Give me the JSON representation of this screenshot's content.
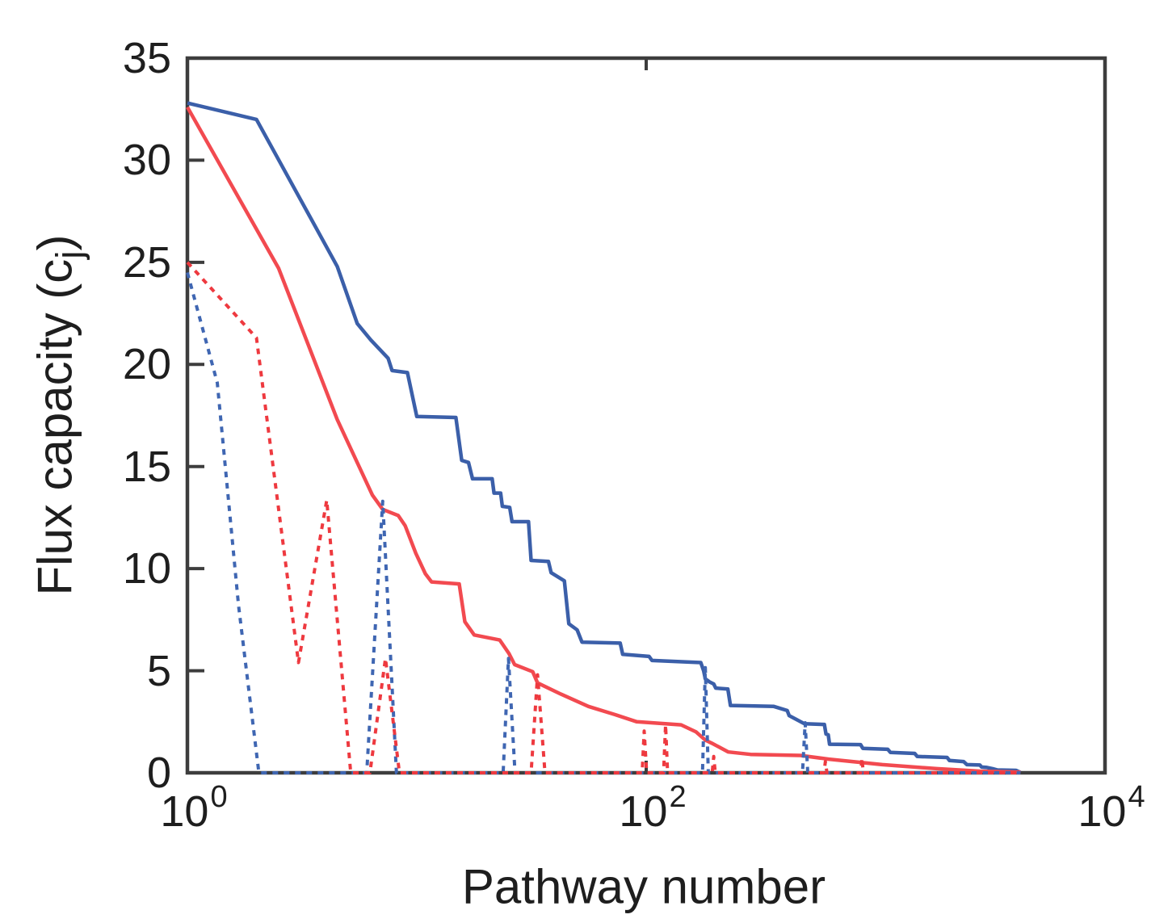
{
  "figure": {
    "background": "#ffffff",
    "frame_color": "#3d3d3d",
    "text_color": "#1e1e1e"
  },
  "chart_data": {
    "type": "line",
    "title": "",
    "xlabel": "Pathway number",
    "ylabel": {
      "main": "Flux capacity (c",
      "sub": "j",
      "end": ")"
    },
    "x_scale": "log10",
    "xlim": [
      1,
      10000
    ],
    "ylim": [
      0,
      35
    ],
    "yticks": [
      0,
      5,
      10,
      15,
      20,
      25,
      30,
      35
    ],
    "xtick_base": "10",
    "xtick_exponents": [
      0,
      2,
      4
    ],
    "grid": false,
    "legend_position": "none",
    "series": [
      {
        "id": "blue-solid-sorted-capacity-curve",
        "color": "#3b5fa9",
        "style": "solid",
        "width": 4.5,
        "points": [
          [
            1,
            32.8
          ],
          [
            2,
            32.0
          ],
          [
            4.5,
            24.8
          ],
          [
            5.5,
            22.0
          ],
          [
            6.3,
            21.2
          ],
          [
            7.5,
            20.3
          ],
          [
            7.8,
            19.7
          ],
          [
            9.1,
            19.6
          ],
          [
            10,
            17.45
          ],
          [
            14.8,
            17.4
          ],
          [
            15.7,
            15.3
          ],
          [
            16.8,
            15.2
          ],
          [
            17.5,
            14.4
          ],
          [
            21.3,
            14.4
          ],
          [
            21.7,
            13.7
          ],
          [
            23.2,
            13.7
          ],
          [
            23.6,
            13.05
          ],
          [
            25.4,
            13.0
          ],
          [
            26,
            12.3
          ],
          [
            30.7,
            12.3
          ],
          [
            31.5,
            10.4
          ],
          [
            37.5,
            10.35
          ],
          [
            38.5,
            9.8
          ],
          [
            44,
            9.4
          ],
          [
            46,
            7.3
          ],
          [
            50,
            7.0
          ],
          [
            52.5,
            6.4
          ],
          [
            77,
            6.35
          ],
          [
            79,
            5.8
          ],
          [
            103,
            5.7
          ],
          [
            106,
            5.5
          ],
          [
            173,
            5.4
          ],
          [
            178,
            5.0
          ],
          [
            181,
            4.6
          ],
          [
            189,
            4.45
          ],
          [
            197,
            4.35
          ],
          [
            201,
            4.15
          ],
          [
            227,
            4.1
          ],
          [
            233,
            3.3
          ],
          [
            360,
            3.25
          ],
          [
            412,
            3.05
          ],
          [
            420,
            2.8
          ],
          [
            490,
            2.4
          ],
          [
            598,
            2.37
          ],
          [
            608,
            1.9
          ],
          [
            622,
            1.86
          ],
          [
            630,
            1.4
          ],
          [
            860,
            1.38
          ],
          [
            880,
            1.2
          ],
          [
            1130,
            1.15
          ],
          [
            1160,
            1.0
          ],
          [
            1480,
            0.95
          ],
          [
            1520,
            0.8
          ],
          [
            2050,
            0.75
          ],
          [
            2100,
            0.6
          ],
          [
            2420,
            0.55
          ],
          [
            2500,
            0.4
          ],
          [
            2850,
            0.38
          ],
          [
            2900,
            0.28
          ],
          [
            3060,
            0.26
          ],
          [
            3240,
            0.2
          ],
          [
            3400,
            0.14
          ],
          [
            4100,
            0.12
          ],
          [
            4280,
            0.02
          ]
        ]
      },
      {
        "id": "red-solid-sorted-capacity-curve",
        "color": "#f24a50",
        "style": "solid",
        "width": 4.5,
        "points": [
          [
            1,
            32.6
          ],
          [
            2.5,
            24.7
          ],
          [
            4.5,
            17.3
          ],
          [
            6.4,
            13.6
          ],
          [
            7.1,
            12.9
          ],
          [
            8.3,
            12.6
          ],
          [
            8.9,
            12.1
          ],
          [
            9.9,
            10.75
          ],
          [
            10.9,
            9.75
          ],
          [
            11.6,
            9.35
          ],
          [
            15.3,
            9.25
          ],
          [
            16.2,
            7.4
          ],
          [
            17.8,
            6.75
          ],
          [
            23,
            6.5
          ],
          [
            25.2,
            5.85
          ],
          [
            26.7,
            5.3
          ],
          [
            32,
            4.95
          ],
          [
            33.6,
            4.4
          ],
          [
            42.5,
            3.85
          ],
          [
            56,
            3.25
          ],
          [
            73,
            2.85
          ],
          [
            91,
            2.5
          ],
          [
            142,
            2.35
          ],
          [
            165,
            2.0
          ],
          [
            181,
            1.6
          ],
          [
            193,
            1.45
          ],
          [
            228,
            1.02
          ],
          [
            285,
            0.9
          ],
          [
            470,
            0.85
          ],
          [
            625,
            0.67
          ],
          [
            1070,
            0.4
          ],
          [
            1850,
            0.2
          ],
          [
            2850,
            0.08
          ],
          [
            4280,
            0.03
          ]
        ]
      },
      {
        "id": "blue-dashed-pathway-order-curve",
        "color": "#3f66b2",
        "style": "dashed",
        "width": 4,
        "points": [
          [
            1,
            24.5
          ],
          [
            1.35,
            19.1
          ],
          [
            1.67,
            8.2
          ],
          [
            2.05,
            0
          ],
          [
            6.05,
            0
          ],
          [
            7.1,
            13.3
          ],
          [
            8.15,
            0
          ],
          [
            23.8,
            0
          ],
          [
            25.1,
            5.6
          ],
          [
            26.8,
            0
          ],
          [
            176,
            0
          ],
          [
            181,
            5.15
          ],
          [
            186.5,
            0
          ],
          [
            480,
            0
          ],
          [
            493,
            2.45
          ],
          [
            506,
            0
          ],
          [
            4280,
            0
          ]
        ]
      },
      {
        "id": "red-dashed-pathway-order-curve",
        "color": "#ee393f",
        "style": "dashed",
        "width": 4,
        "points": [
          [
            1,
            25.0
          ],
          [
            2.0,
            21.3
          ],
          [
            3.05,
            5.4
          ],
          [
            4.05,
            13.35
          ],
          [
            5.15,
            0
          ],
          [
            6.25,
            0
          ],
          [
            7.3,
            5.6
          ],
          [
            8.4,
            0
          ],
          [
            31.5,
            0
          ],
          [
            33.6,
            4.8
          ],
          [
            36.2,
            0
          ],
          [
            96,
            0
          ],
          [
            98,
            2.05
          ],
          [
            100.5,
            0
          ],
          [
            119,
            0
          ],
          [
            121.5,
            2.35
          ],
          [
            124,
            0
          ],
          [
            194,
            0
          ],
          [
            197,
            0.8
          ],
          [
            200,
            0
          ],
          [
            596,
            0
          ],
          [
            604,
            0.55
          ],
          [
            614,
            0
          ],
          [
            862,
            0
          ],
          [
            872,
            0.72
          ],
          [
            884,
            0
          ],
          [
            4280,
            0
          ]
        ]
      }
    ]
  }
}
